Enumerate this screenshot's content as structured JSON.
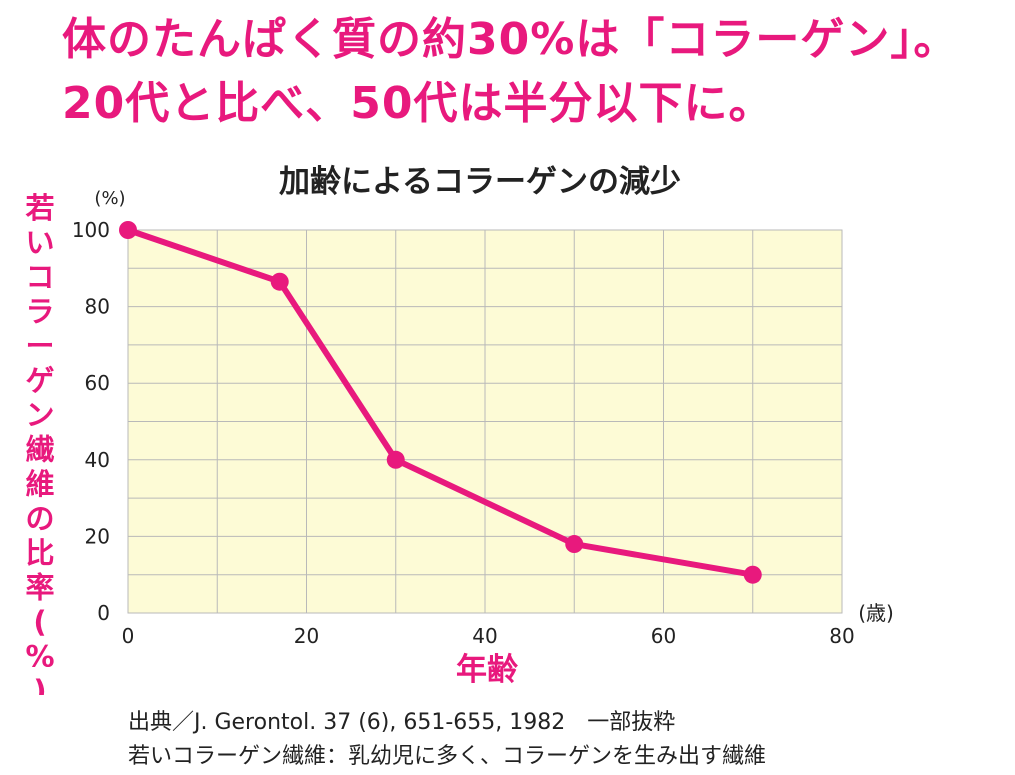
{
  "headline": {
    "line1": "体のたんぱく質の約30%は「コラーゲン」。",
    "line2": "20代と比べ、50代は半分以下に。"
  },
  "colors": {
    "accent": "#e8197d",
    "plot_background": "#fdfbd6",
    "grid": "#b9b9b9",
    "text": "#222222"
  },
  "chart_data": {
    "type": "line",
    "title": "加齢によるコラーゲンの減少",
    "xlabel": "年齢",
    "x_unit": "(歳)",
    "ylabel": "若いコラーゲン繊維の比率(%)",
    "y_unit": "(%)",
    "xlim": [
      0,
      80
    ],
    "ylim": [
      0,
      100
    ],
    "x_ticks": [
      0,
      20,
      40,
      60,
      80
    ],
    "y_ticks": [
      0,
      20,
      40,
      60,
      80,
      100
    ],
    "grid": true,
    "series": [
      {
        "x": [
          0,
          17,
          30,
          50,
          70
        ],
        "values": [
          100,
          86.5,
          40,
          18,
          10
        ]
      }
    ]
  },
  "source": {
    "line1": "出典／J. Gerontol. 37 (6), 651-655, 1982　一部抜粋",
    "line2": "若いコラーゲン繊維：乳幼児に多く、コラーゲンを生み出す繊維"
  }
}
